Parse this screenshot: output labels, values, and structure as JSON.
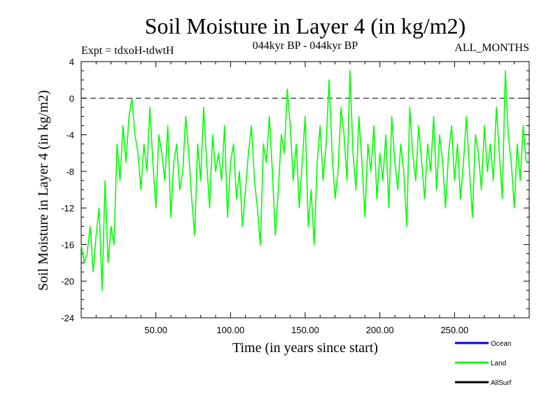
{
  "chart_data": {
    "type": "line",
    "title": "Soil Moisture in Layer 4 (in kg/m2)",
    "subtitle_left": "Expt = tdxoH-tdwtH",
    "subtitle_center": "044kyr BP - 044kyr BP",
    "subtitle_right": "ALL_MONTHS",
    "xlabel": "Time (in years since start)",
    "ylabel": "Soil Moisture in Layer 4 (in kg/m2)",
    "xlim": [
      0,
      300
    ],
    "ylim": [
      -24,
      4
    ],
    "xticks": [
      50,
      100,
      150,
      200,
      250
    ],
    "xtick_labels": [
      "50.00",
      "100.00",
      "150.00",
      "200.00",
      "250.00"
    ],
    "yticks": [
      4,
      0,
      -4,
      -8,
      -12,
      -16,
      -20,
      -24
    ],
    "ytick_labels": [
      "4",
      "0",
      "-4",
      "-8",
      "-12",
      "-16",
      "-20",
      "-24"
    ],
    "reference_line": 0,
    "legend": [
      {
        "name": "Ocean",
        "color": "#0000ff"
      },
      {
        "name": "Land",
        "color": "#00ff00"
      },
      {
        "name": "AllSurf",
        "color": "#000000"
      }
    ],
    "series": [
      {
        "name": "Land",
        "color": "#00ff00",
        "x_start": 0,
        "x_step": 2,
        "values": [
          -16,
          -18,
          -17,
          -14,
          -19,
          -15,
          -12,
          -21,
          -9,
          -18,
          -14,
          -16,
          -5,
          -9,
          -3,
          -7,
          -2,
          0,
          -4,
          -6,
          -10,
          -5,
          -8,
          -1,
          -7,
          -12,
          -4,
          -6,
          -9,
          -3,
          -13,
          -7,
          -5,
          -10,
          -8,
          -2,
          -6,
          -11,
          -15,
          -5,
          -9,
          -1,
          -7,
          -12,
          -4,
          -8,
          -6,
          -9,
          -3,
          -13,
          -7,
          -5,
          -11,
          -8,
          -14,
          -10,
          -6,
          -3,
          -9,
          -12,
          -16,
          -5,
          -7,
          -2,
          -8,
          -15,
          -10,
          -4,
          -6,
          1,
          -3,
          -9,
          -5,
          -12,
          -7,
          -2,
          -14,
          -10,
          -16,
          -7,
          -3,
          -9,
          -5,
          2,
          -6,
          -11,
          -8,
          -1,
          -4,
          -9,
          3,
          -6,
          -10,
          -2,
          -7,
          -13,
          -5,
          -8,
          -3,
          -11,
          -6,
          -9,
          -4,
          -12,
          -2,
          -7,
          -10,
          -5,
          -8,
          -14,
          -1,
          -6,
          -9,
          -3,
          -7,
          -11,
          -5,
          -8,
          -2,
          -10,
          -4,
          -7,
          -12,
          -6,
          -3,
          -9,
          -5,
          -11,
          -7,
          -2,
          -8,
          -13,
          -4,
          -6,
          -10,
          -3,
          -8,
          -5,
          -9,
          -1,
          -6,
          -11,
          3,
          -4,
          -7,
          -12,
          -5,
          -9,
          -3,
          -7
        ]
      }
    ]
  }
}
